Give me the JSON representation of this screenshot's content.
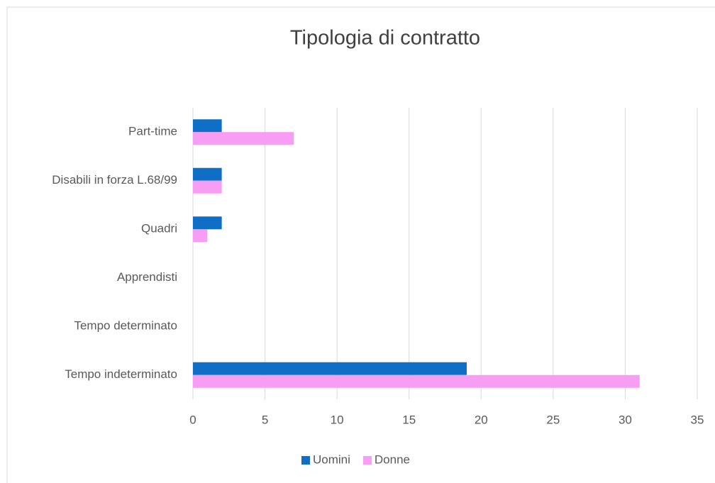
{
  "chart_data": {
    "type": "hbar",
    "title": "Tipologia di contratto",
    "categories": [
      "Part-time",
      "Disabili in forza L.68/99",
      "Quadri",
      "Apprendisti",
      "Tempo determinato",
      "Tempo indeterminato"
    ],
    "series": [
      {
        "name": "Uomini",
        "color": "#0f6fc6",
        "values": [
          2,
          2,
          2,
          0,
          0,
          19
        ]
      },
      {
        "name": "Donne",
        "color": "#f79ef4",
        "values": [
          7,
          2,
          1,
          0,
          0,
          31
        ]
      }
    ],
    "xlim": [
      0,
      35
    ],
    "xticks": [
      0,
      5,
      10,
      15,
      20,
      25,
      30,
      35
    ],
    "grid": true,
    "legend": "bottom"
  }
}
